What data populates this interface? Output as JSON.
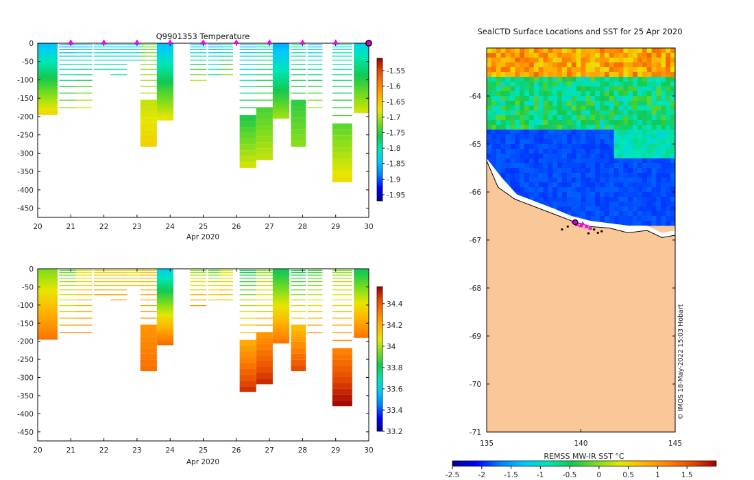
{
  "chart_data": [
    {
      "type": "heatmap",
      "title": "Q9901353  Temperature",
      "xlabel": "Apr 2020",
      "ylabel": "",
      "x_ticks": [
        "20",
        "21",
        "22",
        "23",
        "24",
        "25",
        "26",
        "27",
        "28",
        "29",
        "30"
      ],
      "y_ticks": [
        "0",
        "-50",
        "-100",
        "-150",
        "-200",
        "-250",
        "-300",
        "-350",
        "-400",
        "-450"
      ],
      "xlim": [
        20,
        30
      ],
      "ylim": [
        -475,
        0
      ],
      "colorbar": {
        "min": -1.97,
        "max": -1.51,
        "ticks": [
          "-1.55",
          "-1.6",
          "-1.65",
          "-1.7",
          "-1.75",
          "-1.8",
          "-1.85",
          "-1.9",
          "-1.95"
        ]
      },
      "profile_markers_day": [
        21,
        22,
        23,
        24,
        25,
        26,
        27,
        28,
        29
      ],
      "last_profile_day": 30,
      "profiles": [
        {
          "day": 20.0,
          "width": 0.6,
          "max_depth": 195,
          "solid": true,
          "surface": -1.85,
          "deep": -1.66
        },
        {
          "day": 20.65,
          "width": 0.5,
          "max_depth": 185,
          "solid": false,
          "surface": -1.88,
          "deep": -1.7
        },
        {
          "day": 21.15,
          "width": 0.5,
          "max_depth": 185,
          "solid": false,
          "surface": -1.86,
          "deep": -1.67
        },
        {
          "day": 21.7,
          "width": 0.5,
          "max_depth": 80,
          "solid": false,
          "surface": -1.83,
          "deep": -1.79
        },
        {
          "day": 22.2,
          "width": 0.5,
          "max_depth": 90,
          "solid": false,
          "surface": -1.84,
          "deep": -1.8
        },
        {
          "day": 22.7,
          "width": 0.5,
          "max_depth": 55,
          "solid": false,
          "surface": -1.85,
          "deep": -1.8
        },
        {
          "day": 23.1,
          "width": 0.5,
          "max_depth": 270,
          "solid": false,
          "surface": -1.73,
          "deep": -1.66
        },
        {
          "day": 23.6,
          "width": 0.5,
          "max_depth": 210,
          "solid": true,
          "surface": -1.85,
          "deep": -1.67
        },
        {
          "day": 24.6,
          "width": 0.5,
          "max_depth": 110,
          "solid": false,
          "surface": -1.86,
          "deep": -1.68
        },
        {
          "day": 25.15,
          "width": 0.45,
          "max_depth": 95,
          "solid": false,
          "surface": -1.87,
          "deep": -1.78
        },
        {
          "day": 25.5,
          "width": 0.4,
          "max_depth": 95,
          "solid": false,
          "surface": -1.83,
          "deep": -1.7
        },
        {
          "day": 26.1,
          "width": 0.5,
          "max_depth": 335,
          "solid": false,
          "surface": -1.86,
          "deep": -1.68
        },
        {
          "day": 26.6,
          "width": 0.5,
          "max_depth": 310,
          "solid": false,
          "surface": -1.8,
          "deep": -1.69
        },
        {
          "day": 27.1,
          "width": 0.5,
          "max_depth": 205,
          "solid": true,
          "surface": -1.86,
          "deep": -1.7
        },
        {
          "day": 27.65,
          "width": 0.45,
          "max_depth": 275,
          "solid": false,
          "surface": -1.8,
          "deep": -1.71
        },
        {
          "day": 28.15,
          "width": 0.45,
          "max_depth": 185,
          "solid": false,
          "surface": -1.86,
          "deep": -1.69
        },
        {
          "day": 28.9,
          "width": 0.6,
          "max_depth": 365,
          "solid": false,
          "surface": -1.82,
          "deep": -1.67
        },
        {
          "day": 29.55,
          "width": 0.45,
          "max_depth": 190,
          "solid": true,
          "surface": -1.83,
          "deep": -1.68
        }
      ]
    },
    {
      "type": "heatmap",
      "title": "",
      "xlabel": "Apr 2020",
      "ylabel": "",
      "x_ticks": [
        "20",
        "21",
        "22",
        "23",
        "24",
        "25",
        "26",
        "27",
        "28",
        "29",
        "30"
      ],
      "y_ticks": [
        "0",
        "-50",
        "-100",
        "-150",
        "-200",
        "-250",
        "-300",
        "-350",
        "-400",
        "-450"
      ],
      "xlim": [
        20,
        30
      ],
      "ylim": [
        -475,
        0
      ],
      "colorbar": {
        "min": 33.2,
        "max": 34.56,
        "ticks": [
          "34.4",
          "34.2",
          "34",
          "33.8",
          "33.6",
          "33.4",
          "33.2"
        ]
      },
      "profiles": [
        {
          "day": 20.0,
          "width": 0.6,
          "max_depth": 195,
          "solid": true,
          "surface": 33.95,
          "deep": 34.35
        },
        {
          "day": 20.65,
          "width": 0.5,
          "max_depth": 185,
          "solid": false,
          "surface": 33.9,
          "deep": 34.3
        },
        {
          "day": 21.15,
          "width": 0.5,
          "max_depth": 185,
          "solid": false,
          "surface": 34.05,
          "deep": 34.3
        },
        {
          "day": 21.7,
          "width": 0.5,
          "max_depth": 80,
          "solid": false,
          "surface": 34.1,
          "deep": 34.25
        },
        {
          "day": 22.2,
          "width": 0.5,
          "max_depth": 90,
          "solid": false,
          "surface": 34.1,
          "deep": 34.25
        },
        {
          "day": 22.7,
          "width": 0.5,
          "max_depth": 55,
          "solid": false,
          "surface": 34.05,
          "deep": 34.2
        },
        {
          "day": 23.1,
          "width": 0.5,
          "max_depth": 270,
          "solid": false,
          "surface": 34.15,
          "deep": 34.35
        },
        {
          "day": 23.6,
          "width": 0.5,
          "max_depth": 210,
          "solid": true,
          "surface": 33.6,
          "deep": 34.38
        },
        {
          "day": 24.6,
          "width": 0.5,
          "max_depth": 110,
          "solid": false,
          "surface": 33.95,
          "deep": 34.3
        },
        {
          "day": 25.15,
          "width": 0.45,
          "max_depth": 95,
          "solid": false,
          "surface": 33.9,
          "deep": 34.2
        },
        {
          "day": 25.5,
          "width": 0.4,
          "max_depth": 95,
          "solid": false,
          "surface": 34.05,
          "deep": 34.2
        },
        {
          "day": 26.1,
          "width": 0.5,
          "max_depth": 335,
          "solid": false,
          "surface": 33.8,
          "deep": 34.5
        },
        {
          "day": 26.6,
          "width": 0.5,
          "max_depth": 310,
          "solid": false,
          "surface": 33.95,
          "deep": 34.5
        },
        {
          "day": 27.1,
          "width": 0.5,
          "max_depth": 205,
          "solid": true,
          "surface": 33.8,
          "deep": 34.35
        },
        {
          "day": 27.65,
          "width": 0.45,
          "max_depth": 275,
          "solid": false,
          "surface": 33.8,
          "deep": 34.45
        },
        {
          "day": 28.15,
          "width": 0.45,
          "max_depth": 185,
          "solid": false,
          "surface": 33.85,
          "deep": 34.3
        },
        {
          "day": 28.9,
          "width": 0.6,
          "max_depth": 365,
          "solid": false,
          "surface": 33.95,
          "deep": 34.55
        },
        {
          "day": 29.55,
          "width": 0.45,
          "max_depth": 190,
          "solid": true,
          "surface": 33.8,
          "deep": 34.35
        }
      ]
    },
    {
      "type": "heatmap",
      "title": "SealCTD Surface Locations and SST for 25 Apr 2020",
      "xlabel": "",
      "ylabel": "",
      "x_ticks": [
        "135",
        "140",
        "145"
      ],
      "y_ticks": [
        "-64",
        "-65",
        "-66",
        "-67",
        "-68",
        "-69",
        "-70",
        "-71"
      ],
      "xlim": [
        135,
        145
      ],
      "ylim": [
        -71,
        -63
      ],
      "colorbar": {
        "label": "REMSS MW-IR SST °C",
        "min": -2.5,
        "max": 2,
        "ticks": [
          "-2.5",
          "-2",
          "-1.5",
          "-1",
          "-0.5",
          "0",
          "0.5",
          "1",
          "1.5"
        ]
      },
      "sst_bands": [
        {
          "lat_top": -63.0,
          "lat_bottom": -63.6,
          "sst": 0.9
        },
        {
          "lat_top": -63.6,
          "lat_bottom": -64.6,
          "sst": -0.6
        },
        {
          "lat_top": -64.6,
          "lat_bottom": -66.6,
          "sst": -1.85
        }
      ],
      "seal_locations": [
        [
          139.6,
          -66.62
        ],
        [
          139.8,
          -66.68
        ],
        [
          140.0,
          -66.7
        ],
        [
          140.1,
          -66.66
        ],
        [
          140.3,
          -66.72
        ],
        [
          140.5,
          -66.75
        ],
        [
          139.3,
          -66.72
        ],
        [
          140.7,
          -66.78
        ],
        [
          141.1,
          -66.82
        ],
        [
          139.0,
          -66.78
        ],
        [
          140.4,
          -66.86
        ],
        [
          140.9,
          -66.85
        ]
      ],
      "latest_location": [
        139.7,
        -66.63
      ],
      "credit": "© IMOS 18-May-2022 15:03 Hobart"
    }
  ]
}
